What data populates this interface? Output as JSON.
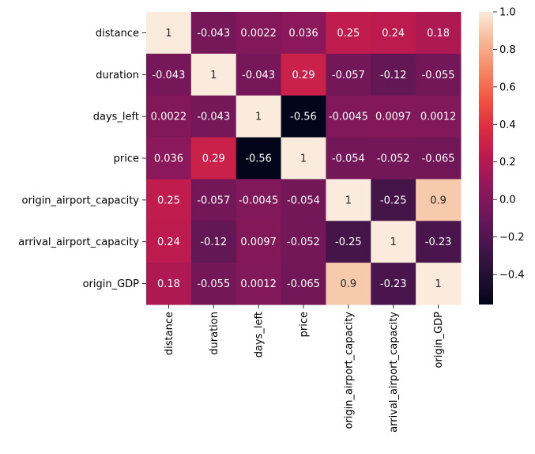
{
  "chart_data": {
    "type": "heatmap",
    "title": "",
    "xlabel": "",
    "ylabel": "",
    "rows": [
      "distance",
      "duration",
      "days_left",
      "price",
      "origin_airport_capacity",
      "arrival_airport_capacity",
      "origin_GDP"
    ],
    "columns": [
      "distance",
      "duration",
      "days_left",
      "price",
      "origin_airport_capacity",
      "arrival_airport_capacity",
      "origin_GDP"
    ],
    "values": [
      [
        1,
        -0.043,
        0.0022,
        0.036,
        0.25,
        0.24,
        0.18
      ],
      [
        -0.043,
        1,
        -0.043,
        0.29,
        -0.057,
        -0.12,
        -0.055
      ],
      [
        0.0022,
        -0.043,
        1,
        -0.56,
        -0.0045,
        0.0097,
        0.0012
      ],
      [
        0.036,
        0.29,
        -0.56,
        1,
        -0.054,
        -0.052,
        -0.065
      ],
      [
        0.25,
        -0.057,
        -0.0045,
        -0.054,
        1,
        -0.25,
        0.9
      ],
      [
        0.24,
        -0.12,
        0.0097,
        -0.052,
        -0.25,
        1,
        -0.23
      ],
      [
        0.18,
        -0.055,
        0.0012,
        -0.065,
        0.9,
        -0.23,
        1
      ]
    ],
    "value_labels": [
      [
        "1",
        "-0.043",
        "0.0022",
        "0.036",
        "0.25",
        "0.24",
        "0.18"
      ],
      [
        "-0.043",
        "1",
        "-0.043",
        "0.29",
        "-0.057",
        "-0.12",
        "-0.055"
      ],
      [
        "0.0022",
        "-0.043",
        "1",
        "-0.56",
        "-0.0045",
        "0.0097",
        "0.0012"
      ],
      [
        "0.036",
        "0.29",
        "-0.56",
        "1",
        "-0.054",
        "-0.052",
        "-0.065"
      ],
      [
        "0.25",
        "-0.057",
        "-0.0045",
        "-0.054",
        "1",
        "-0.25",
        "0.9"
      ],
      [
        "0.24",
        "-0.12",
        "0.0097",
        "-0.052",
        "-0.25",
        "1",
        "-0.23"
      ],
      [
        "0.18",
        "-0.055",
        "0.0012",
        "-0.065",
        "0.9",
        "-0.23",
        "1"
      ]
    ],
    "colormap": "rocket",
    "vmin": -0.56,
    "vmax": 1.0,
    "colorbar": {
      "ticks": [
        -0.4,
        -0.2,
        0.0,
        0.2,
        0.4,
        0.6,
        0.8,
        1.0
      ],
      "tick_labels": [
        "−0.4",
        "−0.2",
        "0.0",
        "0.2",
        "0.4",
        "0.6",
        "0.8",
        "1.0"
      ],
      "placement": "right"
    }
  }
}
